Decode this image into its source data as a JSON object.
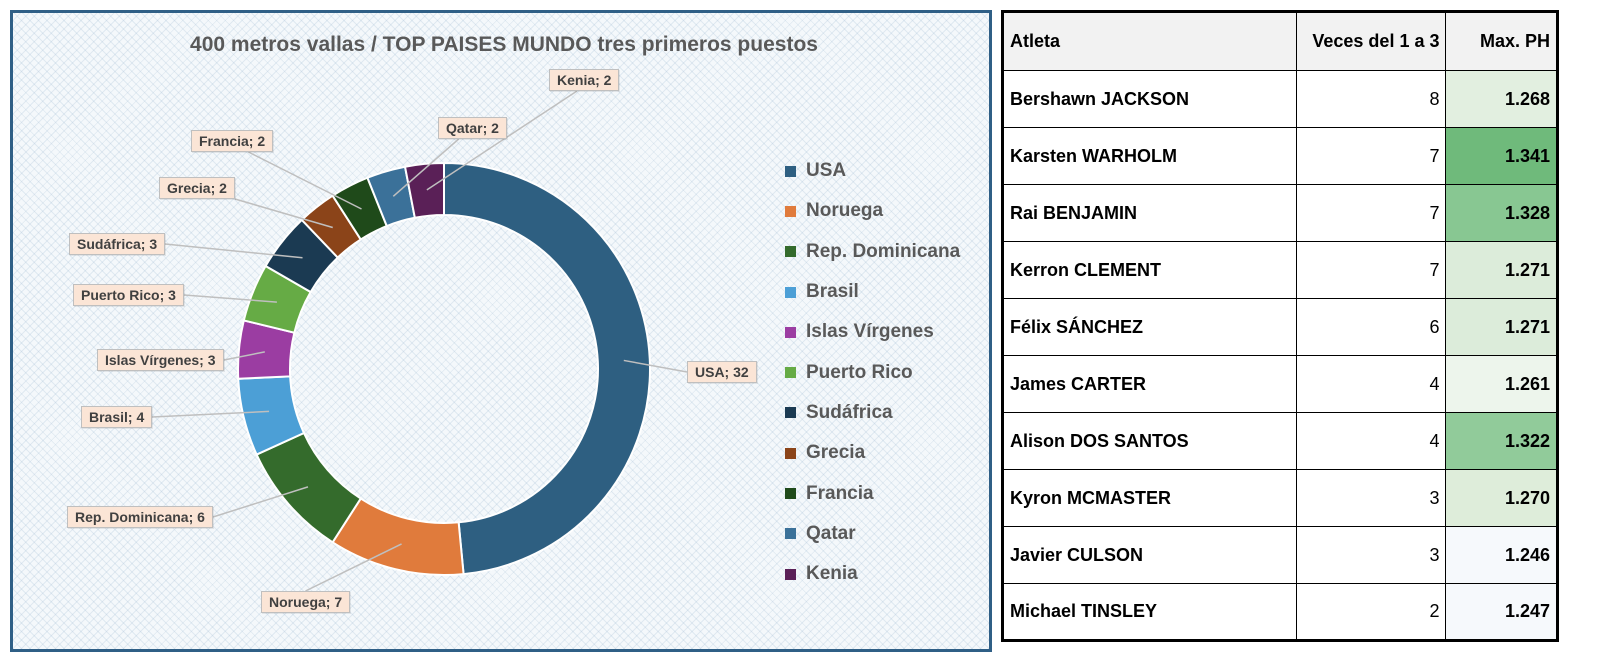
{
  "chart_data": {
    "type": "pie",
    "title": "400 metros vallas / TOP PAISES MUNDO tres primeros puestos",
    "categories": [
      "USA",
      "Noruega",
      "Rep. Dominicana",
      "Brasil",
      "Islas Vírgenes",
      "Puerto Rico",
      "Sudáfrica",
      "Grecia",
      "Francia",
      "Qatar",
      "Kenia"
    ],
    "values": [
      32,
      7,
      6,
      4,
      3,
      3,
      3,
      2,
      2,
      2,
      2
    ],
    "colors": [
      "#2e5f81",
      "#e07b3c",
      "#346b2c",
      "#4c9fd6",
      "#9b3da2",
      "#66ab45",
      "#1b3a52",
      "#8b4419",
      "#1f4a1a",
      "#3b7199",
      "#5a2057"
    ],
    "data_labels": [
      "USA; 32",
      "Noruega; 7",
      "Rep. Dominicana; 6",
      "Brasil; 4",
      "Islas Vírgenes; 3",
      "Puerto Rico; 3",
      "Sudáfrica; 3",
      "Grecia; 2",
      "Francia; 2",
      "Qatar; 2",
      "Kenia; 2"
    ],
    "legend_position": "right",
    "style": "doughnut"
  },
  "table": {
    "headers": [
      "Atleta",
      "Veces del 1 a 3",
      "Max. PH"
    ],
    "rows": [
      {
        "name": "Bershawn JACKSON",
        "count": "8",
        "ph": "1.268",
        "ph_bg": "#e2efe0"
      },
      {
        "name": "Karsten WARHOLM",
        "count": "7",
        "ph": "1.341",
        "ph_bg": "#6fba7b"
      },
      {
        "name": "Rai BENJAMIN",
        "count": "7",
        "ph": "1.328",
        "ph_bg": "#88c792"
      },
      {
        "name": "Kerron CLEMENT",
        "count": "7",
        "ph": "1.271",
        "ph_bg": "#dcecda"
      },
      {
        "name": "Félix SÁNCHEZ",
        "count": "6",
        "ph": "1.271",
        "ph_bg": "#dcecda"
      },
      {
        "name": "James CARTER",
        "count": "4",
        "ph": "1.261",
        "ph_bg": "#edf5ec"
      },
      {
        "name": "Alison DOS SANTOS",
        "count": "4",
        "ph": "1.322",
        "ph_bg": "#91cb9a"
      },
      {
        "name": "Kyron MCMASTER",
        "count": "3",
        "ph": "1.270",
        "ph_bg": "#deedda"
      },
      {
        "name": "Javier CULSON",
        "count": "3",
        "ph": "1.246",
        "ph_bg": "#f6f9fc"
      },
      {
        "name": "Michael TINSLEY",
        "count": "2",
        "ph": "1.247",
        "ph_bg": "#f6f9fc"
      }
    ]
  }
}
